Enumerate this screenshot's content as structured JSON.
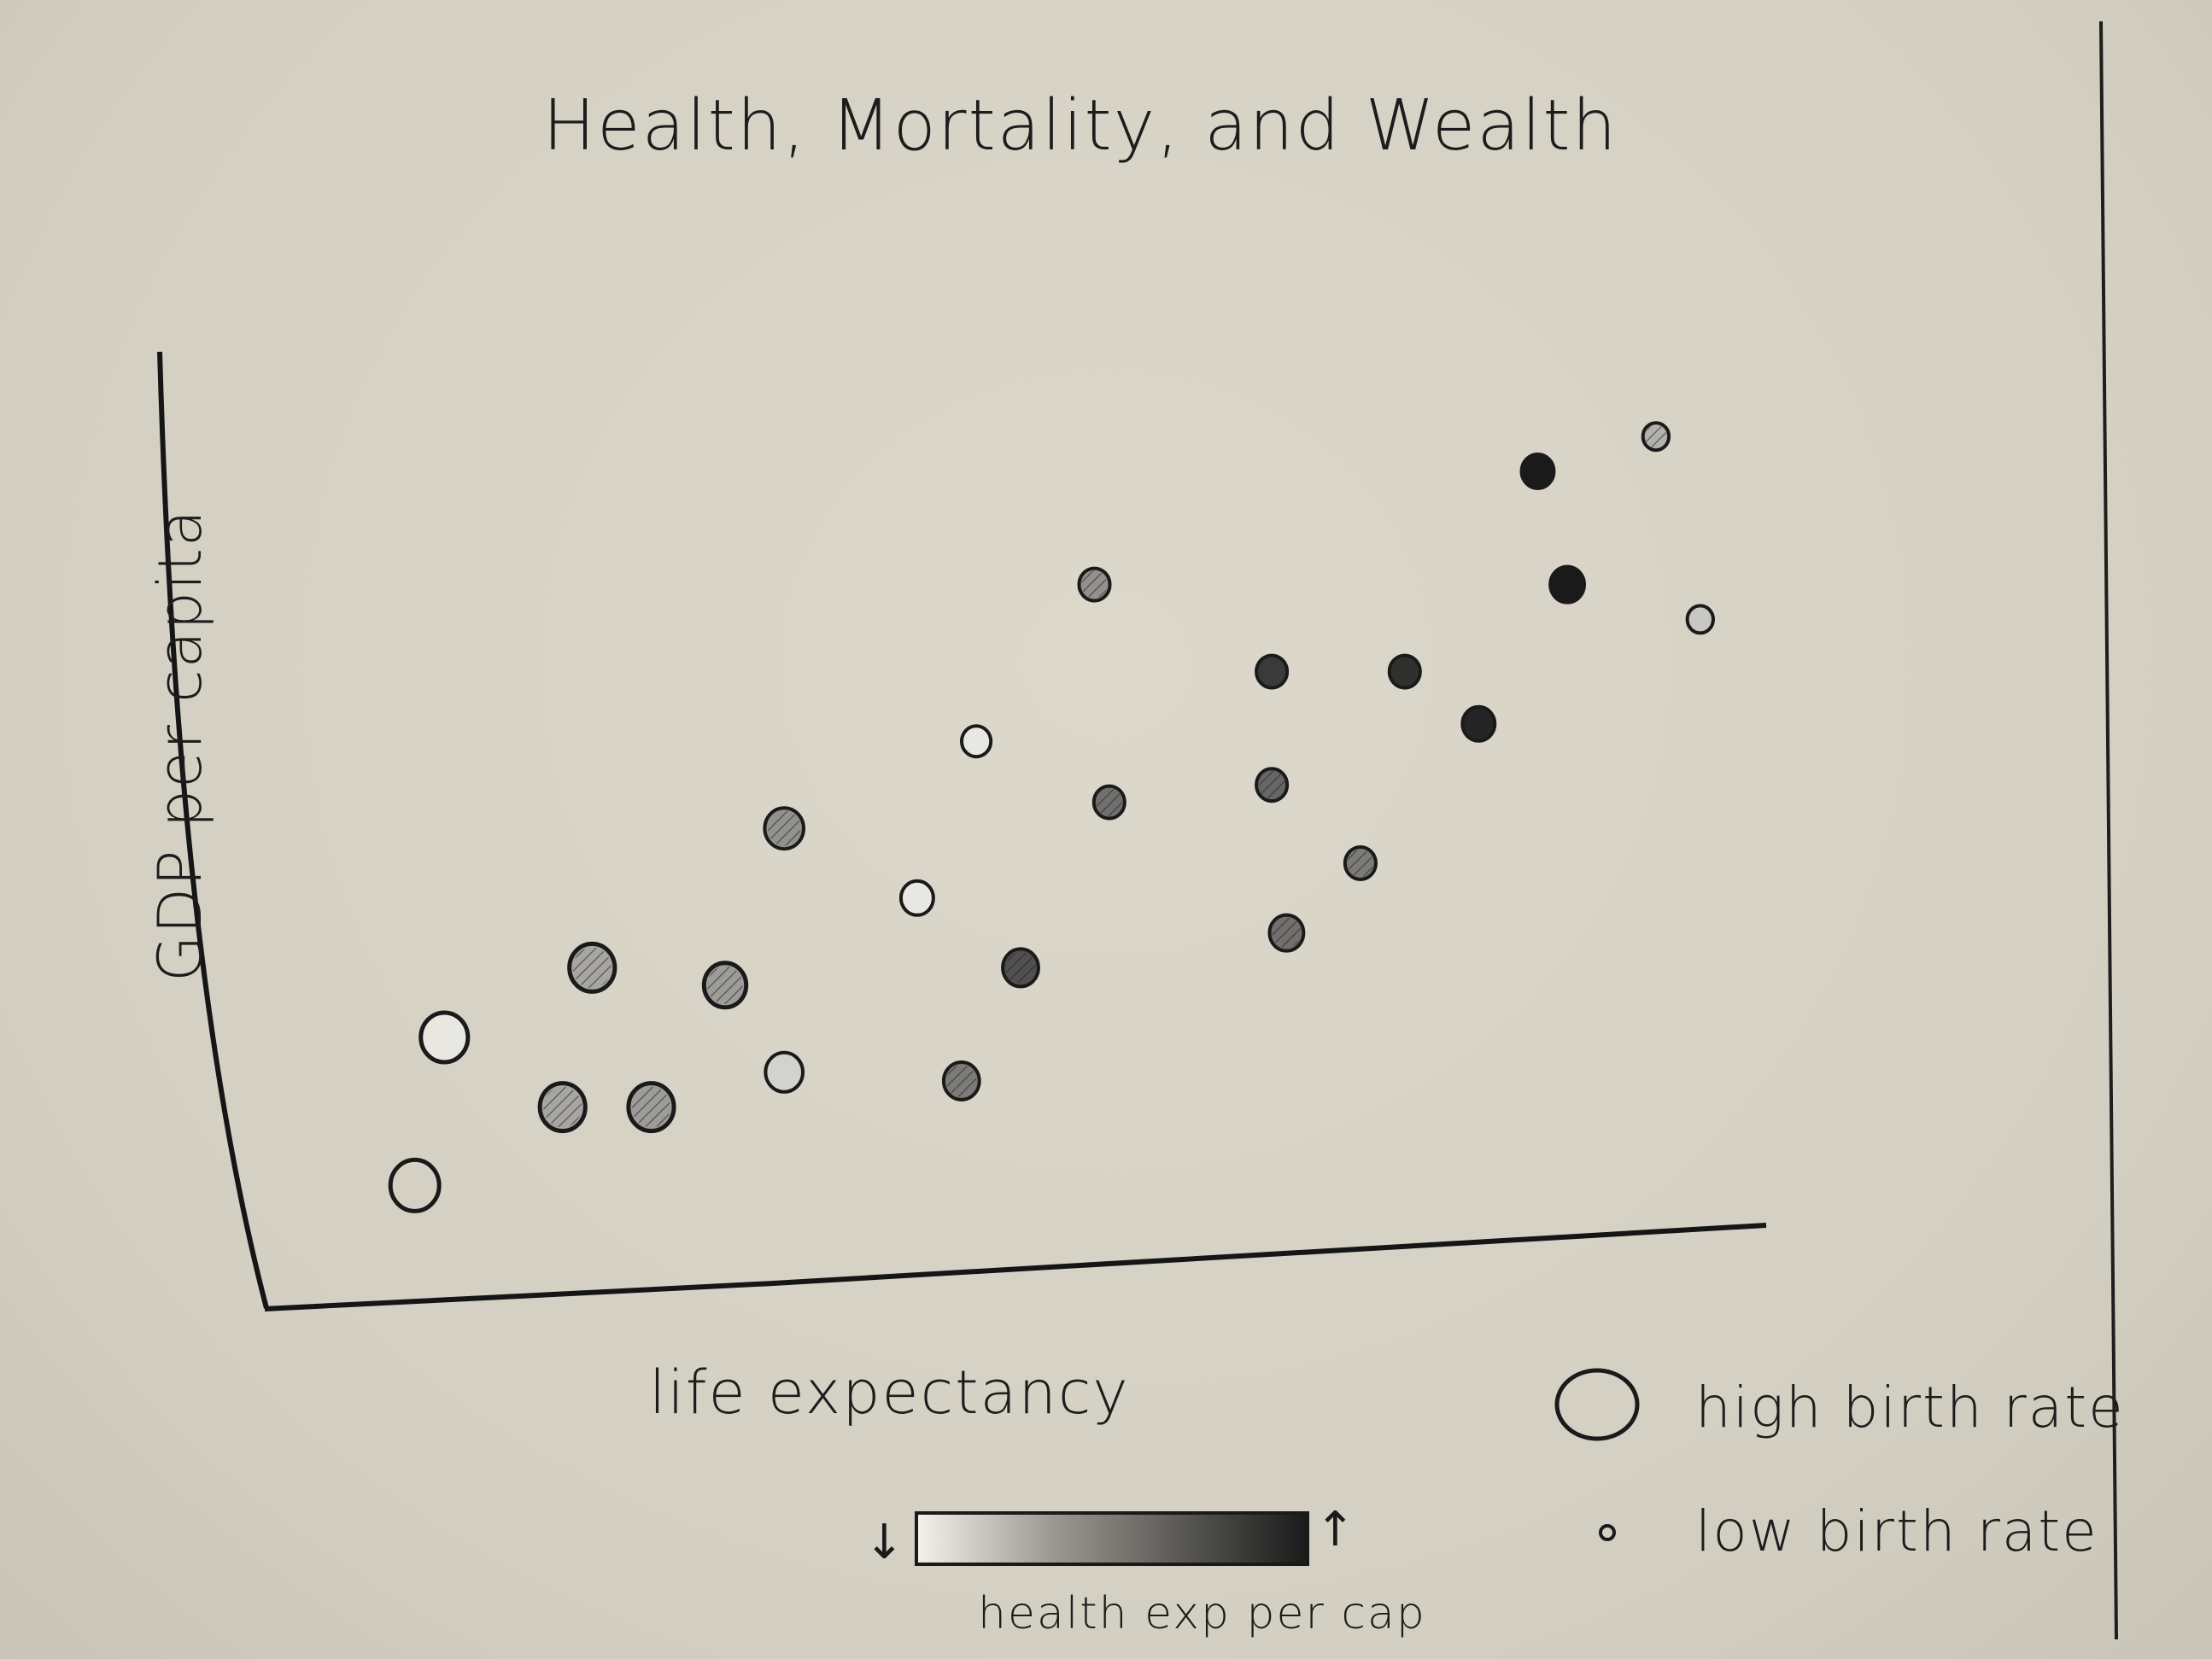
{
  "chart_data": {
    "type": "scatter",
    "title": "Health, Mortality, and Wealth",
    "xlabel": "life expectancy",
    "ylabel": "GDP per capita",
    "xlim": [
      0,
      100
    ],
    "ylim": [
      0,
      100
    ],
    "grid": false,
    "legend": {
      "placement": "bottom-right",
      "entries": [
        {
          "label": "high birth rate",
          "marker": "large-circle"
        },
        {
          "label": "low birth rate",
          "marker": "small-circle"
        }
      ]
    },
    "color_scale": {
      "label": "health exp per cap",
      "low_symbol": "↓",
      "high_symbol": "↑",
      "colors": [
        "#f4f2ec",
        "#1a1a1a"
      ]
    },
    "points": [
      {
        "x": 9,
        "y": 8,
        "size": 1.0,
        "health": 0.0
      },
      {
        "x": 11,
        "y": 25,
        "size": 0.95,
        "health": 0.05
      },
      {
        "x": 19,
        "y": 17,
        "size": 0.9,
        "health": 0.35
      },
      {
        "x": 21,
        "y": 33,
        "size": 0.9,
        "health": 0.35
      },
      {
        "x": 25,
        "y": 17,
        "size": 0.9,
        "health": 0.4
      },
      {
        "x": 30,
        "y": 31,
        "size": 0.8,
        "health": 0.4
      },
      {
        "x": 34,
        "y": 21,
        "size": 0.65,
        "health": 0.15
      },
      {
        "x": 34,
        "y": 49,
        "size": 0.7,
        "health": 0.45
      },
      {
        "x": 43,
        "y": 41,
        "size": 0.5,
        "health": 0.05
      },
      {
        "x": 46,
        "y": 20,
        "size": 0.6,
        "health": 0.55
      },
      {
        "x": 47,
        "y": 59,
        "size": 0.4,
        "health": 0.05
      },
      {
        "x": 50,
        "y": 33,
        "size": 0.6,
        "health": 0.75
      },
      {
        "x": 56,
        "y": 52,
        "size": 0.45,
        "health": 0.6
      },
      {
        "x": 55,
        "y": 77,
        "size": 0.45,
        "health": 0.45
      },
      {
        "x": 67,
        "y": 54,
        "size": 0.45,
        "health": 0.65
      },
      {
        "x": 67,
        "y": 67,
        "size": 0.45,
        "health": 0.85
      },
      {
        "x": 68,
        "y": 37,
        "size": 0.55,
        "health": 0.6
      },
      {
        "x": 73,
        "y": 45,
        "size": 0.45,
        "health": 0.55
      },
      {
        "x": 76,
        "y": 67,
        "size": 0.45,
        "health": 0.9
      },
      {
        "x": 81,
        "y": 61,
        "size": 0.5,
        "health": 0.95
      },
      {
        "x": 85,
        "y": 90,
        "size": 0.5,
        "health": 1.0
      },
      {
        "x": 87,
        "y": 77,
        "size": 0.55,
        "health": 1.0
      },
      {
        "x": 93,
        "y": 94,
        "size": 0.3,
        "health": 0.3
      },
      {
        "x": 96,
        "y": 73,
        "size": 0.3,
        "health": 0.2
      }
    ]
  }
}
